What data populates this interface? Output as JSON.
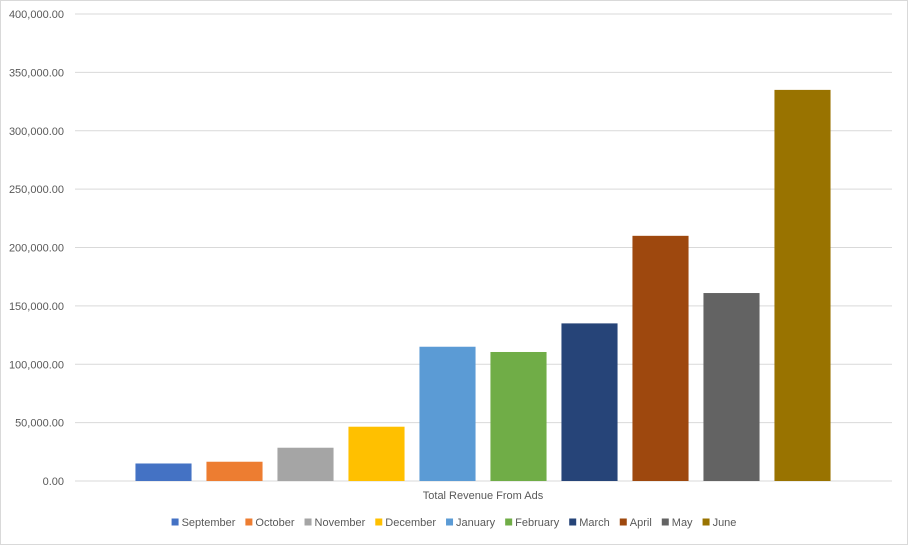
{
  "chart_data": {
    "type": "bar",
    "xlabel": "Total Revenue From Ads",
    "ylim": [
      0,
      400000
    ],
    "ytick_step": 50000,
    "ytick_labels": [
      "0.00",
      "50,000.00",
      "100,000.00",
      "150,000.00",
      "200,000.00",
      "250,000.00",
      "300,000.00",
      "350,000.00",
      "400,000.00"
    ],
    "grid": true,
    "legend_position": "bottom",
    "series": [
      {
        "name": "September",
        "value": 15000,
        "color": "#4472C4"
      },
      {
        "name": "October",
        "value": 16500,
        "color": "#ED7D31"
      },
      {
        "name": "November",
        "value": 28500,
        "color": "#A5A5A5"
      },
      {
        "name": "December",
        "value": 46500,
        "color": "#FFC000"
      },
      {
        "name": "January",
        "value": 115000,
        "color": "#5B9BD5"
      },
      {
        "name": "February",
        "value": 110500,
        "color": "#70AD47"
      },
      {
        "name": "March",
        "value": 135000,
        "color": "#264478"
      },
      {
        "name": "April",
        "value": 210000,
        "color": "#9E480E"
      },
      {
        "name": "May",
        "value": 161000,
        "color": "#636363"
      },
      {
        "name": "June",
        "value": 335000,
        "color": "#997300"
      }
    ]
  }
}
